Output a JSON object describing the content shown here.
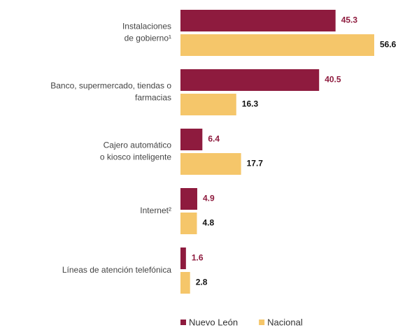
{
  "chart_data": {
    "type": "hbar",
    "categories": [
      [
        "Instalaciones",
        "de gobierno¹"
      ],
      [
        "Banco, supermercado, tiendas o",
        "farmacias"
      ],
      [
        "Cajero automático",
        "o kiosco inteligente"
      ],
      [
        "Internet²"
      ],
      [
        "Líneas de atención telefónica"
      ]
    ],
    "series": [
      {
        "name": "Nuevo León",
        "color": "#8e1b3e",
        "values": [
          45.3,
          40.5,
          6.4,
          4.9,
          1.6
        ]
      },
      {
        "name": "Nacional",
        "color": "#f5c66a",
        "values": [
          56.6,
          16.3,
          17.7,
          4.8,
          2.8
        ]
      }
    ]
  }
}
